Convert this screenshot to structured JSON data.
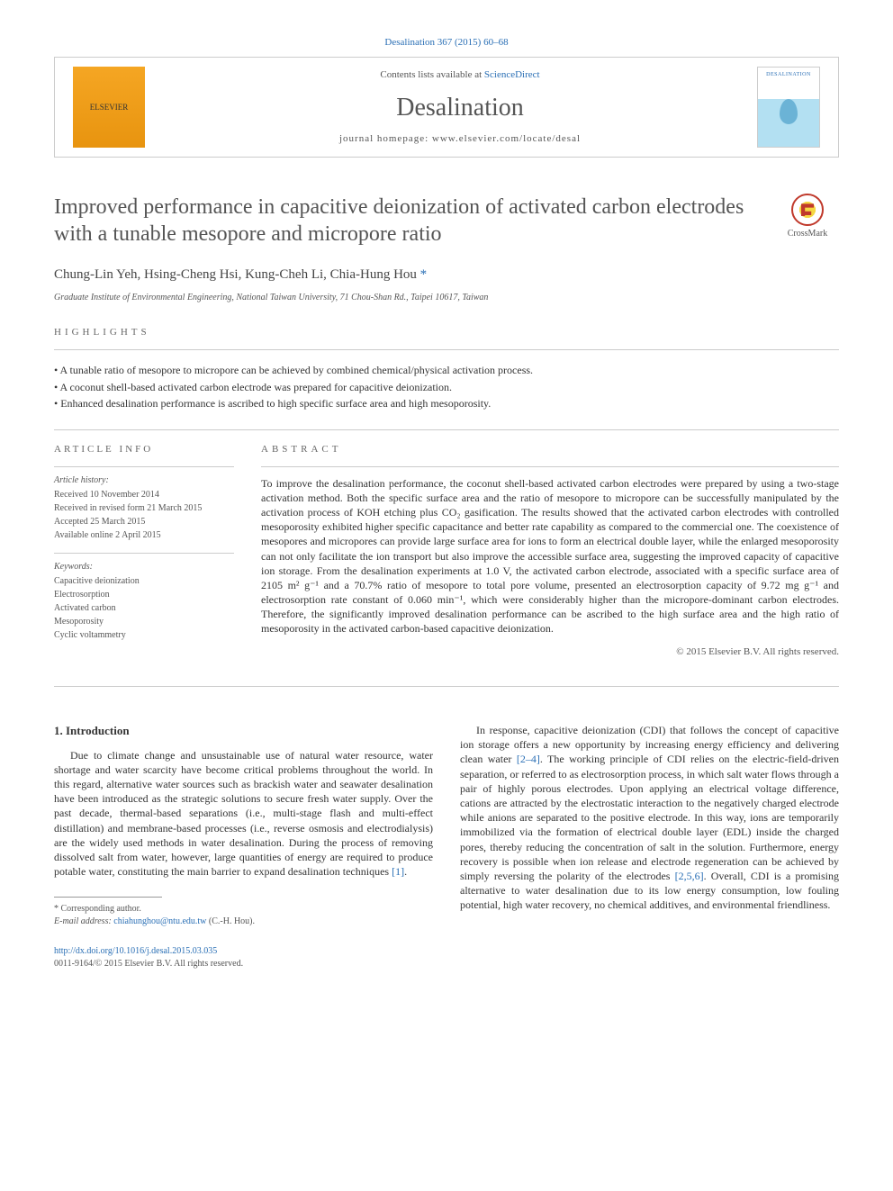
{
  "top_link": "Desalination 367 (2015) 60–68",
  "header": {
    "elsevier_label": "ELSEVIER",
    "contents_prefix": "Contents lists available at ",
    "contents_link": "ScienceDirect",
    "journal_name": "Desalination",
    "homepage_prefix": "journal homepage: ",
    "homepage_url": "www.elsevier.com/locate/desal",
    "cover_label": "DESALINATION"
  },
  "crossmark_label": "CrossMark",
  "title": "Improved performance in capacitive deionization of activated carbon electrodes with a tunable mesopore and micropore ratio",
  "authors": "Chung-Lin Yeh, Hsing-Cheng Hsi, Kung-Cheh Li, Chia-Hung Hou ",
  "corr_marker": "*",
  "affiliation": "Graduate Institute of Environmental Engineering, National Taiwan University, 71 Chou-Shan Rd., Taipei 10617, Taiwan",
  "highlights_label": "HIGHLIGHTS",
  "highlights": [
    "A tunable ratio of mesopore to micropore can be achieved by combined chemical/physical activation process.",
    "A coconut shell-based activated carbon electrode was prepared for capacitive deionization.",
    "Enhanced desalination performance is ascribed to high specific surface area and high mesoporosity."
  ],
  "article_info": {
    "label": "ARTICLE INFO",
    "history_label": "Article history:",
    "history": [
      "Received 10 November 2014",
      "Received in revised form 21 March 2015",
      "Accepted 25 March 2015",
      "Available online 2 April 2015"
    ],
    "keywords_label": "Keywords:",
    "keywords": [
      "Capacitive deionization",
      "Electrosorption",
      "Activated carbon",
      "Mesoporosity",
      "Cyclic voltammetry"
    ]
  },
  "abstract": {
    "label": "ABSTRACT",
    "text": "To improve the desalination performance, the coconut shell-based activated carbon electrodes were prepared by using a two-stage activation method. Both the specific surface area and the ratio of mesopore to micropore can be successfully manipulated by the activation process of KOH etching plus CO₂ gasification. The results showed that the activated carbon electrodes with controlled mesoporosity exhibited higher specific capacitance and better rate capability as compared to the commercial one. The coexistence of mesopores and micropores can provide large surface area for ions to form an electrical double layer, while the enlarged mesoporosity can not only facilitate the ion transport but also improve the accessible surface area, suggesting the improved capacity of capacitive ion storage. From the desalination experiments at 1.0 V, the activated carbon electrode, associated with a specific surface area of 2105 m² g⁻¹ and a 70.7% ratio of mesopore to total pore volume, presented an electrosorption capacity of 9.72 mg g⁻¹ and electrosorption rate constant of 0.060 min⁻¹, which were considerably higher than the micropore-dominant carbon electrodes. Therefore, the significantly improved desalination performance can be ascribed to the high surface area and the high ratio of mesoporosity in the activated carbon-based capacitive deionization.",
    "copyright": "© 2015 Elsevier B.V. All rights reserved."
  },
  "body": {
    "heading": "1. Introduction",
    "left": "Due to climate change and unsustainable use of natural water resource, water shortage and water scarcity have become critical problems throughout the world. In this regard, alternative water sources such as brackish water and seawater desalination have been introduced as the strategic solutions to secure fresh water supply. Over the past decade, thermal-based separations (i.e., multi-stage flash and multi-effect distillation) and membrane-based processes (i.e., reverse osmosis and electrodialysis) are the widely used methods in water desalination. During the process of removing dissolved salt from water, however, large quantities of energy are required to produce potable water, constituting the main barrier to expand desalination techniques ",
    "left_cite": "[1]",
    "left_after": ".",
    "right_pre": "In response, capacitive deionization (CDI) that follows the concept of capacitive ion storage offers a new opportunity by increasing energy efficiency and delivering clean water ",
    "right_cite1": "[2–4]",
    "right_mid": ". The working principle of CDI relies on the electric-field-driven separation, or referred to as electrosorption process, in which salt water flows through a pair of highly porous electrodes. Upon applying an electrical voltage difference, cations are attracted by the electrostatic interaction to the negatively charged electrode while anions are separated to the positive electrode. In this way, ions are temporarily immobilized via the formation of electrical double layer (EDL) inside the charged pores, thereby reducing the concentration of salt in the solution. Furthermore, energy recovery is possible when ion release and electrode regeneration can be achieved by simply reversing the polarity of the electrodes ",
    "right_cite2": "[2,5,6]",
    "right_after": ". Overall, CDI is a promising alternative to water desalination due to its low energy consumption, low fouling potential, high water recovery, no chemical additives, and environmental friendliness."
  },
  "footnote": {
    "corr": "* Corresponding author.",
    "email_label": "E-mail address: ",
    "email": "chiahunghou@ntu.edu.tw",
    "email_who": " (C.-H. Hou)."
  },
  "footer": {
    "doi": "http://dx.doi.org/10.1016/j.desal.2015.03.035",
    "issn_line": "0011-9164/© 2015 Elsevier B.V. All rights reserved."
  }
}
